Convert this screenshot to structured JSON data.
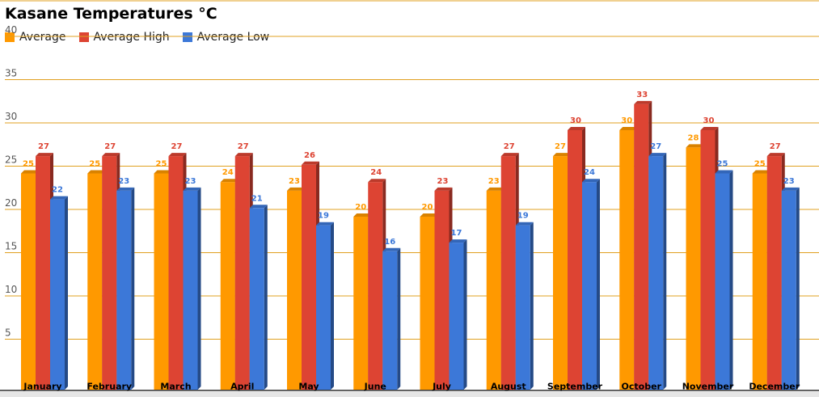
{
  "chart_data": {
    "type": "bar",
    "title": "Kasane Temperatures °C",
    "xlabel": "",
    "ylabel": "",
    "ylim": [
      0,
      40
    ],
    "yticks": [
      5,
      10,
      15,
      20,
      25,
      30,
      35,
      40
    ],
    "grid": true,
    "legend_position": "top-left",
    "categories": [
      "January",
      "February",
      "March",
      "April",
      "May",
      "June",
      "July",
      "August",
      "September",
      "October",
      "November",
      "December"
    ],
    "series": [
      {
        "name": "Average",
        "color": "#ff9900",
        "values": [
          25,
          25,
          25,
          24,
          23,
          20,
          20,
          23,
          27,
          30,
          28,
          25
        ]
      },
      {
        "name": "Average High",
        "color": "#dd4433",
        "values": [
          27,
          27,
          27,
          27,
          26,
          24,
          23,
          27,
          30,
          33,
          30,
          27
        ]
      },
      {
        "name": "Average Low",
        "color": "#3c78d8",
        "values": [
          22,
          23,
          23,
          21,
          19,
          16,
          17,
          19,
          24,
          27,
          25,
          23
        ]
      }
    ],
    "gridline_color": "#e0a020"
  }
}
